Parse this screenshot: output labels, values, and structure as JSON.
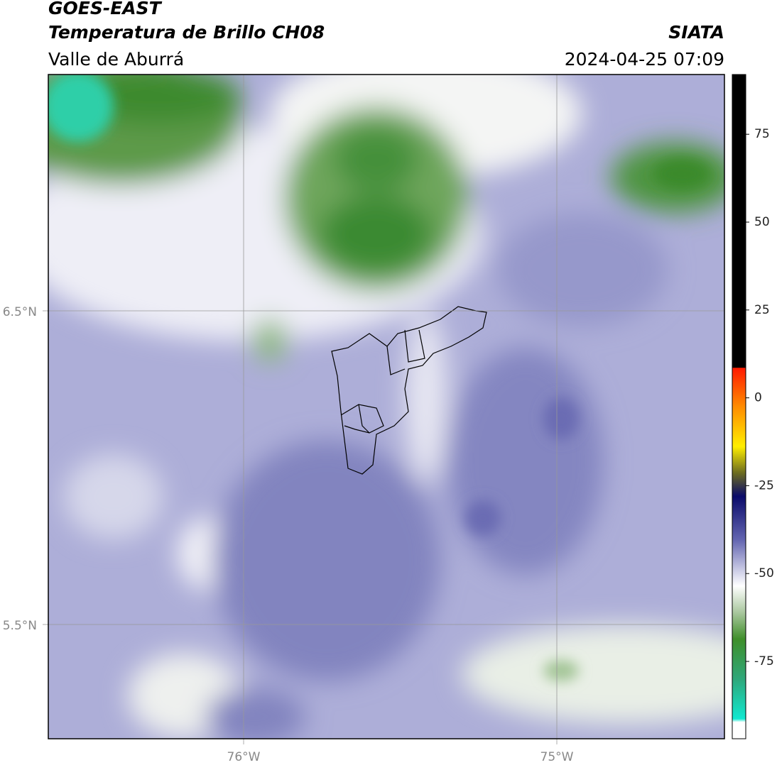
{
  "header": {
    "title": "GOES-EAST",
    "subtitle": "Temperatura de Brillo CH08",
    "region": "Valle de Aburrá",
    "source": "SIATA",
    "datetime": "2024-04-25 07:09"
  },
  "map": {
    "lat_labels": [
      "6.5°N",
      "5.5°N"
    ],
    "lon_labels": [
      "76°W",
      "75°W"
    ]
  },
  "colorbar": {
    "lim": [
      -97,
      92
    ],
    "ticks": [
      75,
      50,
      25,
      0,
      -25,
      -50,
      -75
    ]
  }
}
